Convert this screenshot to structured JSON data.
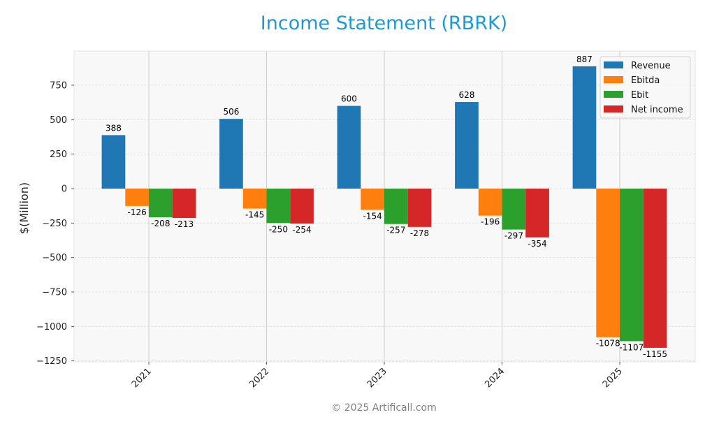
{
  "title": "Income Statement (RBRK)",
  "footer": "© 2025 Artificall.com",
  "colors": {
    "Revenue": "#1f77b4",
    "Ebitda": "#ff7f0e",
    "Ebit": "#2ca02c",
    "Net income": "#d62728",
    "title": "#1a9ad6",
    "plot_bg": "#f8f8f8"
  },
  "chart_data": {
    "type": "bar",
    "title": "Income Statement (RBRK)",
    "xlabel": "",
    "ylabel": "$(Million)",
    "categories": [
      "2021",
      "2022",
      "2023",
      "2024",
      "2025"
    ],
    "series": [
      {
        "name": "Revenue",
        "values": [
          388,
          506,
          600,
          628,
          887
        ]
      },
      {
        "name": "Ebitda",
        "values": [
          -126,
          -145,
          -154,
          -196,
          -1078
        ]
      },
      {
        "name": "Ebit",
        "values": [
          -208,
          -250,
          -257,
          -297,
          -1107
        ]
      },
      {
        "name": "Net income",
        "values": [
          -213,
          -254,
          -278,
          -354,
          -1155
        ]
      }
    ],
    "yticks": [
      750,
      500,
      250,
      0,
      -250,
      -500,
      -750,
      -1000,
      -1250
    ],
    "ytick_labels": [
      "750",
      "500",
      "250",
      "0",
      "−250",
      "−500",
      "−750",
      "−1000",
      "−1250"
    ],
    "ylim": [
      -1262,
      995
    ],
    "grid": true,
    "legend_position": "upper right",
    "data_labels": true
  }
}
